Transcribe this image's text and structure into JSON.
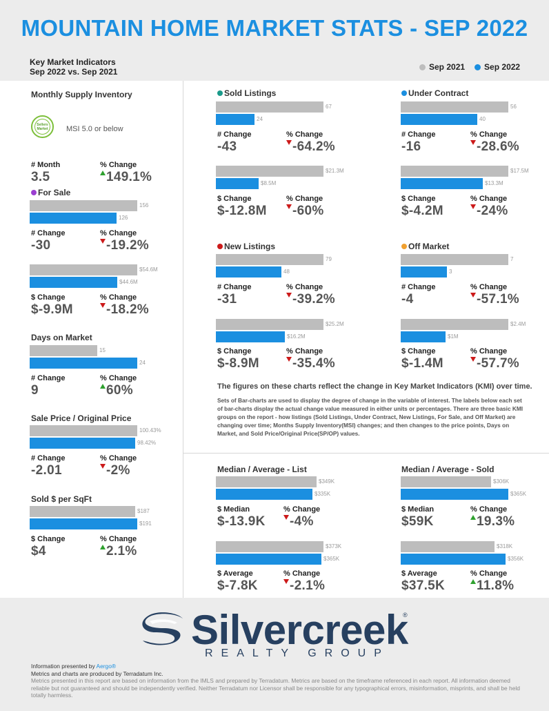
{
  "header": {
    "title": "MOUNTAIN HOME MARKET STATS - SEP 2022"
  },
  "kmi": {
    "line1": "Key Market Indicators",
    "line2": "Sep 2022 vs. Sep 2021"
  },
  "legend": {
    "prev": "Sep 2021",
    "curr": "Sep 2022",
    "prev_color": "#bdbdbd",
    "curr_color": "#1b8fe0"
  },
  "colors": {
    "accent": "#1b8fe0",
    "gray_bar": "#bdbdbd",
    "up": "#2fa12f",
    "down": "#cc1a1a"
  },
  "msi": {
    "title": "Monthly Supply Inventory",
    "badge_line1": "Sellers",
    "badge_line2": "Market",
    "text": "MSI 5.0 or below",
    "lab1": "# Month",
    "val1": "3.5",
    "lab2": "% Change",
    "val2": "149.1%",
    "dir": "up"
  },
  "for_sale": {
    "title": "For Sale",
    "dot_color": "#9b3fd1",
    "count": {
      "prev": 156,
      "curr": 126,
      "prev_label": "156",
      "curr_label": "126",
      "lab1": "# Change",
      "val1": "-30",
      "lab2": "% Change",
      "val2": "-19.2%",
      "dir": "down"
    },
    "volume": {
      "prev": 54.6,
      "curr": 44.6,
      "prev_label": "$54.6M",
      "curr_label": "$44.6M",
      "lab1": "$ Change",
      "val1": "$-9.9M",
      "lab2": "% Change",
      "val2": "-18.2%",
      "dir": "down"
    }
  },
  "dom": {
    "title": "Days on Market",
    "prev": 15,
    "curr": 24,
    "prev_label": "15",
    "curr_label": "24",
    "lab1": "# Change",
    "val1": "9",
    "lab2": "% Change",
    "val2": "60%",
    "dir": "up"
  },
  "spop": {
    "title": "Sale Price / Original Price",
    "prev": 100.43,
    "curr": 98.42,
    "prev_label": "100.43%",
    "curr_label": "98.42%",
    "lab1": "# Change",
    "val1": "-2.01",
    "lab2": "% Change",
    "val2": "-2%",
    "dir": "down"
  },
  "sqft": {
    "title": "Sold $ per SqFt",
    "prev": 187,
    "curr": 191,
    "prev_label": "$187",
    "curr_label": "$191",
    "lab1": "$ Change",
    "val1": "$4",
    "lab2": "% Change",
    "val2": "2.1%",
    "dir": "up"
  },
  "sold": {
    "title": "Sold Listings",
    "dot_color": "#1a9a8a",
    "count": {
      "prev": 67,
      "curr": 24,
      "prev_label": "67",
      "curr_label": "24",
      "lab1": "# Change",
      "val1": "-43",
      "lab2": "% Change",
      "val2": "-64.2%",
      "dir": "down"
    },
    "volume": {
      "prev": 21.3,
      "curr": 8.5,
      "prev_label": "$21.3M",
      "curr_label": "$8.5M",
      "lab1": "$ Change",
      "val1": "$-12.8M",
      "lab2": "% Change",
      "val2": "-60%",
      "dir": "down"
    }
  },
  "under_contract": {
    "title": "Under Contract",
    "dot_color": "#1b8fe0",
    "count": {
      "prev": 56,
      "curr": 40,
      "prev_label": "56",
      "curr_label": "40",
      "lab1": "# Change",
      "val1": "-16",
      "lab2": "% Change",
      "val2": "-28.6%",
      "dir": "down"
    },
    "volume": {
      "prev": 17.5,
      "curr": 13.3,
      "prev_label": "$17.5M",
      "curr_label": "$13.3M",
      "lab1": "$ Change",
      "val1": "$-4.2M",
      "lab2": "% Change",
      "val2": "-24%",
      "dir": "down"
    }
  },
  "new_listings": {
    "title": "New Listings",
    "dot_color": "#cc1a1a",
    "count": {
      "prev": 79,
      "curr": 48,
      "prev_label": "79",
      "curr_label": "48",
      "lab1": "# Change",
      "val1": "-31",
      "lab2": "% Change",
      "val2": "-39.2%",
      "dir": "down"
    },
    "volume": {
      "prev": 25.2,
      "curr": 16.2,
      "prev_label": "$25.2M",
      "curr_label": "$16.2M",
      "lab1": "$ Change",
      "val1": "$-8.9M",
      "lab2": "% Change",
      "val2": "-35.4%",
      "dir": "down"
    }
  },
  "off_market": {
    "title": "Off Market",
    "dot_color": "#f0a030",
    "count": {
      "prev": 7,
      "curr": 3,
      "prev_label": "7",
      "curr_label": "3",
      "lab1": "# Change",
      "val1": "-4",
      "lab2": "% Change",
      "val2": "-57.1%",
      "dir": "down"
    },
    "volume": {
      "prev": 2.4,
      "curr": 1.0,
      "prev_label": "$2.4M",
      "curr_label": "$1M",
      "lab1": "$ Change",
      "val1": "$-1.4M",
      "lab2": "% Change",
      "val2": "-57.7%",
      "dir": "down"
    }
  },
  "note": {
    "title": "The figures on these charts reflect the change in Key Market Indicators (KMI) over time.",
    "body": "Sets of Bar-charts are used to display the degree of change in the variable of interest. The labels below each set of bar-charts display the actual change value measured in either units or percentages. There are three basic KMI groups on the report - how listings (Sold Listings, Under Contract, New Listings, For Sale, and Off Market) are changing over time; Months Supply Inventory(MSI) changes; and then changes to the price points, Days on Market, and Sold Price/Original Price(SP/OP) values."
  },
  "list_prices": {
    "title": "Median / Average - List",
    "median": {
      "prev": 349,
      "curr": 335,
      "prev_label": "$349K",
      "curr_label": "$335K",
      "lab1": "$ Median",
      "val1": "$-13.9K",
      "lab2": "% Change",
      "val2": "-4%",
      "dir": "down"
    },
    "average": {
      "prev": 373,
      "curr": 365,
      "prev_label": "$373K",
      "curr_label": "$365K",
      "lab1": "$ Average",
      "val1": "$-7.8K",
      "lab2": "% Change",
      "val2": "-2.1%",
      "dir": "down"
    }
  },
  "sold_prices": {
    "title": "Median / Average - Sold",
    "median": {
      "prev": 306,
      "curr": 365,
      "prev_label": "$306K",
      "curr_label": "$365K",
      "lab1": "$ Median",
      "val1": "$59K",
      "lab2": "% Change",
      "val2": "19.3%",
      "dir": "up"
    },
    "average": {
      "prev": 318,
      "curr": 356,
      "prev_label": "$318K",
      "curr_label": "$356K",
      "lab1": "$ Average",
      "val1": "$37.5K",
      "lab2": "% Change",
      "val2": "11.8%",
      "dir": "up"
    }
  },
  "logo": {
    "name": "Silvercreek",
    "sub": "REALTY GROUP",
    "reg": "®"
  },
  "footer": {
    "presented_prefix": "Information presented by ",
    "presented_by": "Aergo®",
    "line2": "Metrics and charts are produced by Terradatum Inc.",
    "disclaimer": "Metrics presented in this report are based on information from the IMLS and prepared by Terradatum. Metrics are based on the timeframe referenced in each report. All information deemed reliable but not guaranteed and should be independently verified. Neither Terradatum nor Licensor shall be responsible for any typographical errors, misinformation, misprints, and shall be held totally harmless."
  },
  "chart_data": [
    {
      "type": "bar",
      "title": "For Sale",
      "categories": [
        "Sep 2021",
        "Sep 2022"
      ],
      "values": [
        156,
        126
      ]
    },
    {
      "type": "bar",
      "title": "For Sale",
      "categories": [
        "Sep 2021",
        "Sep 2022"
      ],
      "values": [
        54.6,
        44.6
      ]
    },
    {
      "type": "bar",
      "title": "Days on Market",
      "categories": [
        "Sep 2021",
        "Sep 2022"
      ],
      "values": [
        15,
        24
      ]
    },
    {
      "type": "bar",
      "title": "Sale Price / Original Price",
      "categories": [
        "Sep 2021",
        "Sep 2022"
      ],
      "values": [
        100.43,
        98.42
      ]
    },
    {
      "type": "bar",
      "title": "Sold $ per SqFt",
      "categories": [
        "Sep 2021",
        "Sep 2022"
      ],
      "values": [
        187,
        191
      ]
    },
    {
      "type": "bar",
      "title": "Sold Listings",
      "categories": [
        "Sep 2021",
        "Sep 2022"
      ],
      "values": [
        67,
        24
      ]
    },
    {
      "type": "bar",
      "title": "Sold Listings",
      "categories": [
        "Sep 2021",
        "Sep 2022"
      ],
      "values": [
        21.3,
        8.5
      ]
    },
    {
      "type": "bar",
      "title": "Under Contract",
      "categories": [
        "Sep 2021",
        "Sep 2022"
      ],
      "values": [
        56,
        40
      ]
    },
    {
      "type": "bar",
      "title": "Under Contract",
      "categories": [
        "Sep 2021",
        "Sep 2022"
      ],
      "values": [
        17.5,
        13.3
      ]
    },
    {
      "type": "bar",
      "title": "New Listings",
      "categories": [
        "Sep 2021",
        "Sep 2022"
      ],
      "values": [
        79,
        48
      ]
    },
    {
      "type": "bar",
      "title": "New Listings",
      "categories": [
        "Sep 2021",
        "Sep 2022"
      ],
      "values": [
        25.2,
        16.2
      ]
    },
    {
      "type": "bar",
      "title": "Off Market",
      "categories": [
        "Sep 2021",
        "Sep 2022"
      ],
      "values": [
        7,
        3
      ]
    },
    {
      "type": "bar",
      "title": "Off Market",
      "categories": [
        "Sep 2021",
        "Sep 2022"
      ],
      "values": [
        2.4,
        1.0
      ]
    },
    {
      "type": "bar",
      "title": "Median / Average - List",
      "categories": [
        "Sep 2021",
        "Sep 2022"
      ],
      "values": [
        349,
        335
      ]
    },
    {
      "type": "bar",
      "title": "Median / Average - List",
      "categories": [
        "Sep 2021",
        "Sep 2022"
      ],
      "values": [
        373,
        365
      ]
    },
    {
      "type": "bar",
      "title": "Median / Average - Sold",
      "categories": [
        "Sep 2021",
        "Sep 2022"
      ],
      "values": [
        306,
        365
      ]
    },
    {
      "type": "bar",
      "title": "Median / Average - Sold",
      "categories": [
        "Sep 2021",
        "Sep 2022"
      ],
      "values": [
        318,
        356
      ]
    }
  ]
}
